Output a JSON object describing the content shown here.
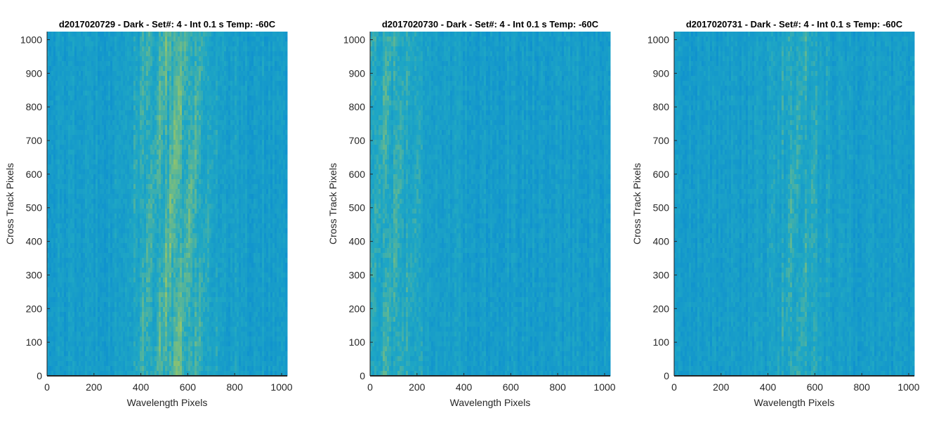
{
  "chart_data": [
    {
      "type": "heatmap",
      "title": "d2017020729 - Dark - Set#: 4 - Int 0.1 s Temp: -60C",
      "xlabel": "Wavelength Pixels",
      "ylabel": "Cross Track Pixels",
      "xlim": [
        0,
        1024
      ],
      "ylim": [
        0,
        1024
      ],
      "xticks": [
        0,
        200,
        400,
        600,
        800,
        1000
      ],
      "yticks": [
        0,
        100,
        200,
        300,
        400,
        500,
        600,
        700,
        800,
        900,
        1000
      ],
      "colormap": "parula",
      "bright_band": {
        "center_x": 540,
        "half_width": 170,
        "strength": 0.85
      }
    },
    {
      "type": "heatmap",
      "title": "d2017020730 - Dark - Set#: 4 - Int 0.1 s Temp: -60C",
      "xlabel": "Wavelength Pixels",
      "ylabel": "Cross Track Pixels",
      "xlim": [
        0,
        1024
      ],
      "ylim": [
        0,
        1024
      ],
      "xticks": [
        0,
        200,
        400,
        600,
        800,
        1000
      ],
      "yticks": [
        0,
        100,
        200,
        300,
        400,
        500,
        600,
        700,
        800,
        900,
        1000
      ],
      "colormap": "parula",
      "bright_band": {
        "center_x": 80,
        "half_width": 160,
        "strength": 0.6
      }
    },
    {
      "type": "heatmap",
      "title": "d2017020731 - Dark - Set#: 4 - Int 0.1 s Temp: -60C",
      "xlabel": "Wavelength Pixels",
      "ylabel": "Cross Track Pixels",
      "xlim": [
        0,
        1024
      ],
      "ylim": [
        0,
        1024
      ],
      "xticks": [
        0,
        200,
        400,
        600,
        800,
        1000
      ],
      "yticks": [
        0,
        100,
        200,
        300,
        400,
        500,
        600,
        700,
        800,
        900,
        1000
      ],
      "colormap": "parula",
      "bright_band": {
        "center_x": 540,
        "half_width": 110,
        "strength": 0.55
      }
    }
  ],
  "colors": {
    "low": "#0a8ad2",
    "mid": "#1fa7c4",
    "high": "#a9c95a",
    "axis": "#262626"
  }
}
